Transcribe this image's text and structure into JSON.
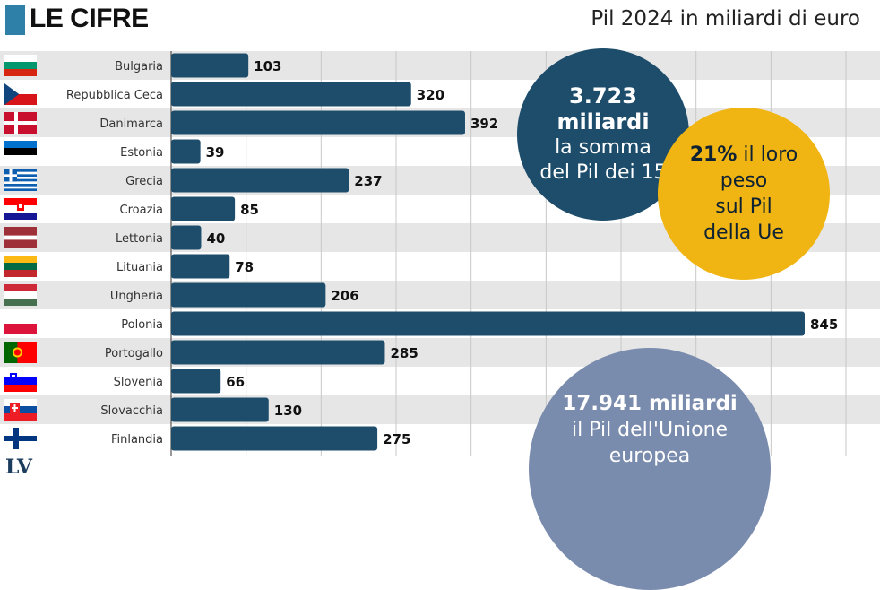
{
  "header": {
    "title": "LE CIFRE",
    "subtitle": "Pil 2024 in miliardi di euro"
  },
  "colors": {
    "bar": "#1d4d6b",
    "stripe": "#e6e6e6",
    "accent_square": "#2f80a8",
    "bubble_dark": "#1d4d6b",
    "bubble_yellow": "#f0b512",
    "bubble_grey": "#7a8cad"
  },
  "chart_data": {
    "type": "bar",
    "orientation": "horizontal",
    "categories": [
      "Bulgaria",
      "Repubblica Ceca",
      "Danimarca",
      "Estonia",
      "Grecia",
      "Croazia",
      "Lettonia",
      "Lituania",
      "Ungheria",
      "Polonia",
      "Portogallo",
      "Slovenia",
      "Slovacchia",
      "Finlandia"
    ],
    "values": [
      103,
      320,
      392,
      39,
      237,
      85,
      40,
      78,
      206,
      845,
      285,
      66,
      130,
      275
    ],
    "xlim": [
      0,
      900
    ],
    "grid": true,
    "data_labels": true
  },
  "flags": [
    "bulgaria-flag-icon",
    "czech-flag-icon",
    "denmark-flag-icon",
    "estonia-flag-icon",
    "greece-flag-icon",
    "croatia-flag-icon",
    "latvia-flag-icon",
    "lithuania-flag-icon",
    "hungary-flag-icon",
    "poland-flag-icon",
    "portugal-flag-icon",
    "slovenia-flag-icon",
    "slovakia-flag-icon",
    "finland-flag-icon"
  ],
  "bubbles": {
    "total": {
      "line1": "3.723",
      "line2": "miliardi",
      "line3": "la somma",
      "line4": "del Pil dei 15"
    },
    "share": {
      "strong": "21%",
      "rest1": " il loro",
      "line2": "peso",
      "line3": "sul Pil",
      "line4": "della Ue"
    },
    "eu": {
      "line1": "17.941 miliardi",
      "line2": "il Pil dell'Unione",
      "line3": "europea"
    }
  },
  "logo": "LV"
}
